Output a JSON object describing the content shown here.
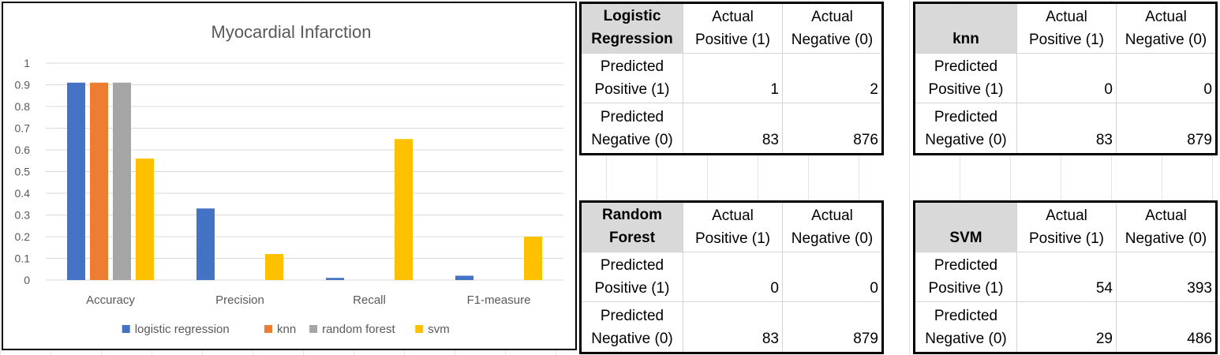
{
  "chart_data": {
    "type": "bar",
    "title": "Myocardial Infarction",
    "categories": [
      "Accuracy",
      "Precision",
      "Recall",
      "F1-measure"
    ],
    "ylim": [
      0,
      1
    ],
    "yticks": [
      "0",
      "0.1",
      "0.2",
      "0.3",
      "0.4",
      "0.5",
      "0.6",
      "0.7",
      "0.8",
      "0.9",
      "1"
    ],
    "grid": true,
    "legend_position": "bottom",
    "series": [
      {
        "name": "logistic regression",
        "color": "#4472c4",
        "values": [
          0.91,
          0.33,
          0.01,
          0.02
        ]
      },
      {
        "name": "knn",
        "color": "#ed7d31",
        "values": [
          0.91,
          0,
          0,
          0
        ]
      },
      {
        "name": "random forest",
        "color": "#a5a5a5",
        "values": [
          0.91,
          0,
          0,
          0
        ]
      },
      {
        "name": "svm",
        "color": "#ffc000",
        "values": [
          0.56,
          0.12,
          0.65,
          0.2
        ]
      }
    ]
  },
  "matrices": {
    "col1": "Actual Positive (1)",
    "col2": "Actual Negative (0)",
    "row1": "Predicted Positive (1)",
    "row2": "Predicted Negative (0)",
    "col1_a": "Actual",
    "col1_b": "Positive (1)",
    "col2_a": "Actual",
    "col2_b": "Negative (0)",
    "row1_a": "Predicted",
    "row1_b": "Positive (1)",
    "row2_a": "Predicted",
    "row2_b": "Negative (0)",
    "lr": {
      "model_a": "Logistic",
      "model_b": "Regression",
      "tp": "1",
      "fp": "2",
      "fn": "83",
      "tn": "876"
    },
    "knn": {
      "model_a": "",
      "model_b": "knn",
      "tp": "0",
      "fp": "0",
      "fn": "83",
      "tn": "879"
    },
    "rf": {
      "model_a": "Random",
      "model_b": "Forest",
      "tp": "0",
      "fp": "0",
      "fn": "83",
      "tn": "879"
    },
    "svm": {
      "model_a": "",
      "model_b": "SVM",
      "tp": "54",
      "fp": "393",
      "fn": "29",
      "tn": "486"
    }
  }
}
